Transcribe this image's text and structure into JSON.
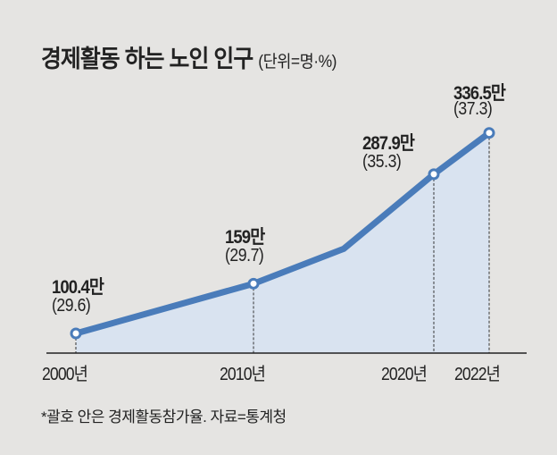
{
  "chart_data": {
    "type": "area",
    "title": "경제활동 하는 노인 인구",
    "unit": "(단위=명·%)",
    "x": [
      2000,
      2010,
      2015,
      2020,
      2022
    ],
    "values": [
      1004000,
      1590000,
      2000000,
      2879000,
      3365000
    ],
    "rates": [
      29.6,
      29.7,
      null,
      35.3,
      37.3
    ],
    "marked": [
      true,
      true,
      false,
      true,
      true
    ],
    "value_labels": [
      "100.4만",
      "159만",
      "",
      "287.9만",
      "336.5만"
    ],
    "rate_labels": [
      "(29.6)",
      "(29.7)",
      "",
      "(35.3)",
      "(37.3)"
    ],
    "tick_labels": [
      "2000년",
      "2010년",
      "2020년",
      "2022년"
    ],
    "note": "*괄호 안은 경제활동참가율. 자료=통계청",
    "colors": {
      "line": "#4a7cba",
      "fill": "#d9e3f0",
      "background": "#e5e4e2"
    },
    "grid": false
  }
}
